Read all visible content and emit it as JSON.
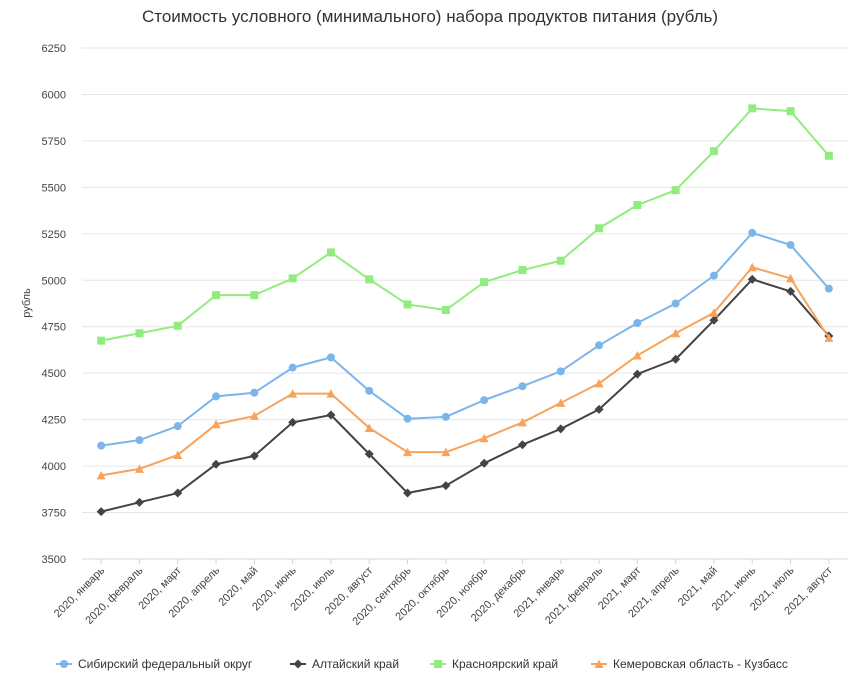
{
  "chart_data": {
    "type": "line",
    "title": "Стоимость условного (минимального) набора продуктов питания (рубль)",
    "ylabel": "рубль",
    "xlabel": "",
    "ylim": [
      3500,
      6250
    ],
    "yticks": [
      3500,
      3750,
      4000,
      4250,
      4500,
      4750,
      5000,
      5250,
      5500,
      5750,
      6000,
      6250
    ],
    "grid": true,
    "legend_position": "bottom",
    "categories": [
      "2020, январь",
      "2020, февраль",
      "2020, март",
      "2020, апрель",
      "2020, май",
      "2020, июнь",
      "2020, июль",
      "2020, август",
      "2020, сентябрь",
      "2020, октябрь",
      "2020, ноябрь",
      "2020, декабрь",
      "2021, январь",
      "2021, февраль",
      "2021, март",
      "2021, апрель",
      "2021, май",
      "2021, июнь",
      "2021, июль",
      "2021, август"
    ],
    "series": [
      {
        "name": "Сибирский федеральный округ",
        "color": "#7cb5ec",
        "marker": "circle",
        "values": [
          4110,
          4140,
          4215,
          4375,
          4395,
          4530,
          4585,
          4405,
          4255,
          4265,
          4355,
          4430,
          4510,
          4650,
          4770,
          4875,
          5025,
          5255,
          5190,
          4955
        ]
      },
      {
        "name": "Алтайский край",
        "color": "#434348",
        "marker": "diamond",
        "values": [
          3755,
          3805,
          3855,
          4010,
          4055,
          4235,
          4275,
          4065,
          3855,
          3895,
          4015,
          4115,
          4200,
          4305,
          4495,
          4575,
          4785,
          5005,
          4940,
          4700
        ]
      },
      {
        "name": "Красноярский край",
        "color": "#90ed7d",
        "marker": "square",
        "values": [
          4675,
          4715,
          4755,
          4920,
          4920,
          5010,
          5150,
          5005,
          4870,
          4840,
          4990,
          5055,
          5105,
          5280,
          5405,
          5485,
          5695,
          5925,
          5910,
          5670
        ]
      },
      {
        "name": "Кемеровская область - Кузбасс",
        "color": "#f7a35c",
        "marker": "triangle",
        "values": [
          3950,
          3985,
          4060,
          4225,
          4270,
          4390,
          4390,
          4205,
          4075,
          4075,
          4150,
          4235,
          4340,
          4445,
          4595,
          4715,
          4825,
          5070,
          5010,
          4690
        ]
      }
    ]
  }
}
